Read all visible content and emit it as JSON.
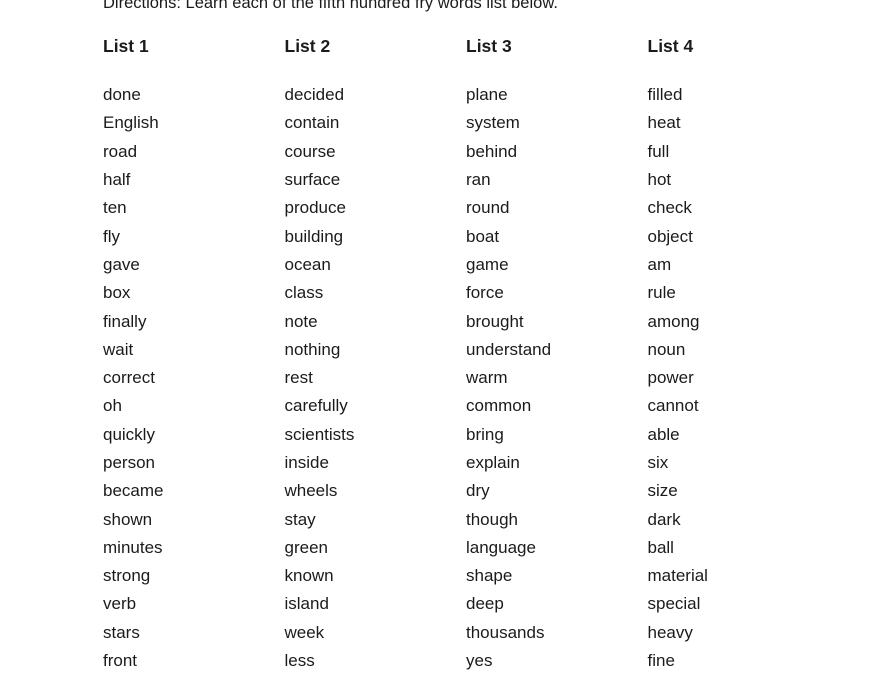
{
  "directions": "Directions: Learn each of the fifth hundred fry words list below.",
  "lists": [
    {
      "label": "List 1",
      "words": [
        "done",
        "English",
        "road",
        "half",
        "ten",
        "fly",
        "gave",
        "box",
        "finally",
        "wait",
        "correct",
        "oh",
        "quickly",
        "person",
        "became",
        "shown",
        "minutes",
        "strong",
        "verb",
        "stars",
        "front"
      ]
    },
    {
      "label": "List 2",
      "words": [
        "decided",
        "contain",
        "course",
        "surface",
        "produce",
        "building",
        "ocean",
        "class",
        "note",
        "nothing",
        "rest",
        "carefully",
        "scientists",
        "inside",
        "wheels",
        "stay",
        "green",
        "known",
        "island",
        "week",
        "less"
      ]
    },
    {
      "label": "List 3",
      "words": [
        "plane",
        "system",
        "behind",
        "ran",
        "round",
        "boat",
        "game",
        "force",
        "brought",
        "understand",
        "warm",
        "common",
        "bring",
        "explain",
        "dry",
        "though",
        "language",
        "shape",
        "deep",
        "thousands",
        "yes"
      ]
    },
    {
      "label": "List 4",
      "words": [
        "filled",
        "heat",
        "full",
        "hot",
        "check",
        "object",
        "am",
        "rule",
        "among",
        "noun",
        "power",
        "cannot",
        "able",
        "six",
        "size",
        "dark",
        "ball",
        "material",
        "special",
        "heavy",
        "fine"
      ]
    }
  ],
  "colors": {
    "background": "#ffffff",
    "text": "#1b1b1b"
  }
}
